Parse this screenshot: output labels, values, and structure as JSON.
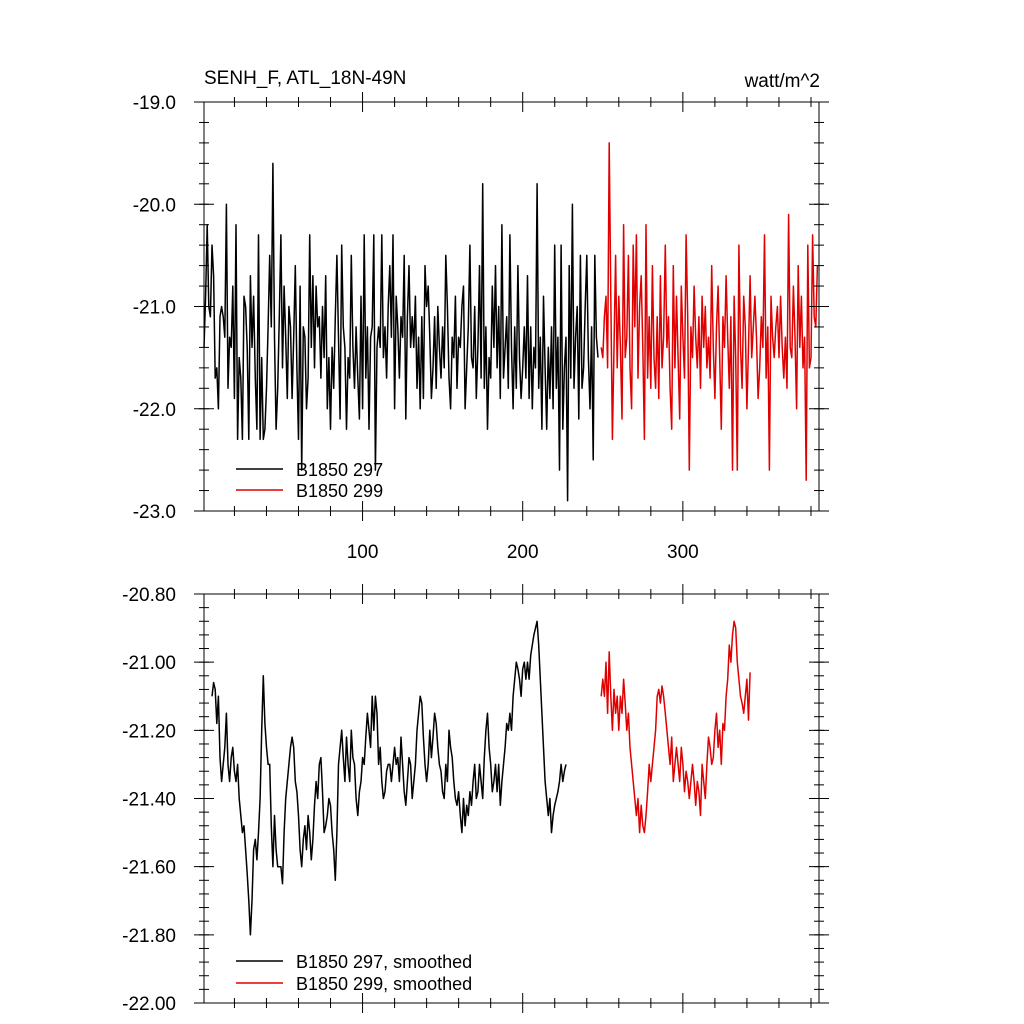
{
  "header": {
    "title": "SENH_F, ATL_18N-49N",
    "units": "watt/m^2"
  },
  "colors": {
    "series_297": "#000000",
    "series_299": "#e00000",
    "axis": "#000000"
  },
  "chart_data": [
    {
      "type": "line",
      "title": "SENH_F, ATL_18N-49N",
      "units": "watt/m^2",
      "xlim": [
        1,
        385
      ],
      "ylim": [
        -23.0,
        -19.0
      ],
      "xticks": [
        100,
        200,
        300
      ],
      "xtick_labels": [
        "100",
        "200",
        "300"
      ],
      "yticks": [
        -23.0,
        -22.0,
        -21.0,
        -20.0,
        -19.0
      ],
      "ytick_labels": [
        "-23.0",
        "-22.0",
        "-21.0",
        "-20.0",
        "-19.0"
      ],
      "legend_position": "bottom-left",
      "series": [
        {
          "name": "B1850 297",
          "color": "#000000",
          "x_start": 1,
          "values": [
            -21.4,
            -20.9,
            -20.2,
            -21.0,
            -21.1,
            -20.4,
            -20.7,
            -21.7,
            -21.6,
            -22.0,
            -21.1,
            -21.0,
            -21.1,
            -21.3,
            -20.0,
            -21.8,
            -21.3,
            -21.4,
            -20.8,
            -21.9,
            -20.2,
            -22.3,
            -21.5,
            -21.7,
            -22.3,
            -20.9,
            -21.0,
            -21.4,
            -22.3,
            -20.7,
            -21.4,
            -20.9,
            -21.7,
            -22.2,
            -20.3,
            -22.3,
            -21.5,
            -22.3,
            -22.2,
            -21.8,
            -21.2,
            -20.5,
            -21.2,
            -19.6,
            -21.3,
            -22.2,
            -21.8,
            -21.1,
            -20.3,
            -21.6,
            -20.8,
            -21.3,
            -21.9,
            -21.0,
            -21.2,
            -21.9,
            -21.3,
            -20.6,
            -21.6,
            -22.3,
            -20.8,
            -22.6,
            -21.2,
            -21.3,
            -22.0,
            -21.7,
            -20.3,
            -21.4,
            -20.7,
            -21.6,
            -20.8,
            -21.2,
            -21.1,
            -21.7,
            -21.0,
            -21.5,
            -20.7,
            -22.0,
            -21.5,
            -22.2,
            -21.4,
            -21.8,
            -21.1,
            -20.5,
            -21.3,
            -22.1,
            -20.4,
            -21.2,
            -21.4,
            -22.2,
            -21.5,
            -21.7,
            -20.5,
            -21.4,
            -21.8,
            -21.2,
            -21.7,
            -22.1,
            -20.9,
            -22.0,
            -20.3,
            -21.7,
            -21.2,
            -22.2,
            -21.3,
            -21.2,
            -20.3,
            -22.6,
            -21.4,
            -21.2,
            -21.4,
            -20.3,
            -21.5,
            -21.2,
            -21.7,
            -21.0,
            -20.6,
            -21.3,
            -20.3,
            -22.0,
            -20.9,
            -21.2,
            -21.7,
            -21.1,
            -21.3,
            -20.5,
            -22.1,
            -21.1,
            -20.6,
            -21.4,
            -21.1,
            -21.4,
            -20.9,
            -21.8,
            -21.3,
            -22.0,
            -21.1,
            -21.9,
            -20.6,
            -21.0,
            -20.8,
            -21.3,
            -21.9,
            -21.6,
            -21.1,
            -21.8,
            -21.0,
            -21.4,
            -21.7,
            -21.2,
            -21.6,
            -20.5,
            -21.0,
            -21.7,
            -22.0,
            -21.3,
            -21.5,
            -20.9,
            -21.8,
            -21.3,
            -21.4,
            -21.0,
            -20.8,
            -22.0,
            -21.6,
            -21.2,
            -20.4,
            -21.5,
            -21.6,
            -21.0,
            -21.9,
            -21.4,
            -20.6,
            -21.7,
            -19.8,
            -21.8,
            -21.2,
            -22.2,
            -21.5,
            -21.7,
            -20.8,
            -21.4,
            -20.6,
            -21.6,
            -21.0,
            -21.9,
            -20.2,
            -21.7,
            -21.4,
            -21.1,
            -21.8,
            -20.3,
            -21.4,
            -22.0,
            -21.2,
            -21.8,
            -20.6,
            -21.5,
            -21.9,
            -21.6,
            -21.2,
            -21.7,
            -20.7,
            -21.9,
            -21.2,
            -22.0,
            -21.4,
            -21.6,
            -19.8,
            -21.8,
            -21.3,
            -22.2,
            -20.9,
            -21.6,
            -22.2,
            -21.4,
            -21.9,
            -21.2,
            -22.0,
            -20.4,
            -21.8,
            -21.3,
            -22.6,
            -20.4,
            -22.2,
            -21.6,
            -21.3,
            -22.9,
            -20.6,
            -21.7,
            -20.0,
            -21.8,
            -21.3,
            -21.0,
            -22.1,
            -20.5,
            -21.8,
            -21.6,
            -21.0,
            -20.5,
            -21.5,
            -22.0,
            -21.2,
            -22.5,
            -20.5,
            -21.3,
            -21.5
          ]
        },
        {
          "name": "B1850 299",
          "color": "#e00000",
          "x_start": 249,
          "values": [
            -21.4,
            -21.5,
            -21.1,
            -20.9,
            -21.6,
            -19.4,
            -20.9,
            -22.3,
            -21.4,
            -20.5,
            -21.6,
            -20.9,
            -21.4,
            -22.1,
            -20.2,
            -21.5,
            -21.3,
            -20.5,
            -21.6,
            -22.0,
            -20.4,
            -21.2,
            -20.3,
            -21.7,
            -21.0,
            -20.7,
            -21.4,
            -22.3,
            -20.2,
            -21.7,
            -21.1,
            -21.8,
            -20.6,
            -21.5,
            -21.8,
            -21.1,
            -21.9,
            -20.7,
            -21.6,
            -21.3,
            -20.4,
            -21.4,
            -21.1,
            -21.8,
            -22.2,
            -20.6,
            -21.6,
            -20.9,
            -21.5,
            -22.1,
            -20.8,
            -21.3,
            -21.7,
            -20.3,
            -21.1,
            -22.6,
            -21.2,
            -21.5,
            -20.8,
            -21.3,
            -21.6,
            -21.1,
            -21.8,
            -20.9,
            -21.4,
            -21.0,
            -21.6,
            -21.3,
            -21.7,
            -20.6,
            -21.4,
            -21.9,
            -21.2,
            -20.8,
            -21.5,
            -22.2,
            -21.1,
            -21.4,
            -20.7,
            -21.3,
            -21.8,
            -21.1,
            -22.6,
            -20.9,
            -21.5,
            -22.6,
            -20.4,
            -21.4,
            -21.8,
            -20.9,
            -21.2,
            -22.0,
            -21.4,
            -20.7,
            -21.5,
            -21.2,
            -20.9,
            -21.3,
            -21.9,
            -21.6,
            -21.1,
            -21.4,
            -20.3,
            -21.7,
            -21.2,
            -22.6,
            -20.9,
            -21.3,
            -21.5,
            -21.2,
            -21.0,
            -21.5,
            -20.9,
            -21.4,
            -21.7,
            -21.3,
            -21.8,
            -20.1,
            -21.4,
            -21.5,
            -20.8,
            -21.3,
            -22.0,
            -20.6,
            -21.4,
            -20.9,
            -21.6,
            -21.3,
            -22.7,
            -20.4,
            -21.6,
            -21.5,
            -20.3,
            -21.1,
            -21.2,
            -20.6
          ]
        }
      ],
      "legend": [
        "B1850 297",
        "B1850 299"
      ]
    },
    {
      "type": "line",
      "xlim": [
        1,
        385
      ],
      "ylim": [
        -22.0,
        -20.8
      ],
      "xticks": [
        100,
        200,
        300
      ],
      "xtick_labels": [],
      "yticks": [
        -22.0,
        -21.8,
        -21.6,
        -21.4,
        -21.2,
        -21.0,
        -20.8
      ],
      "ytick_labels": [
        "-22.00",
        "-21.80",
        "-21.60",
        "-21.40",
        "-21.20",
        "-21.00",
        "-20.80"
      ],
      "legend_position": "bottom-left",
      "series": [
        {
          "name": "B1850 297, smoothed",
          "color": "#000000",
          "x_start": 6,
          "values": [
            -21.1,
            -21.06,
            -21.08,
            -21.18,
            -21.1,
            -21.28,
            -21.35,
            -21.3,
            -21.25,
            -21.15,
            -21.3,
            -21.35,
            -21.28,
            -21.25,
            -21.32,
            -21.35,
            -21.3,
            -21.4,
            -21.45,
            -21.5,
            -21.48,
            -21.55,
            -21.62,
            -21.7,
            -21.8,
            -21.7,
            -21.55,
            -21.52,
            -21.58,
            -21.5,
            -21.4,
            -21.2,
            -21.04,
            -21.18,
            -21.25,
            -21.3,
            -21.3,
            -21.48,
            -21.6,
            -21.45,
            -21.55,
            -21.6,
            -21.6,
            -21.6,
            -21.65,
            -21.5,
            -21.4,
            -21.35,
            -21.3,
            -21.25,
            -21.22,
            -21.25,
            -21.35,
            -21.38,
            -21.45,
            -21.55,
            -21.6,
            -21.52,
            -21.48,
            -21.55,
            -21.45,
            -21.5,
            -21.58,
            -21.52,
            -21.42,
            -21.35,
            -21.4,
            -21.3,
            -21.28,
            -21.38,
            -21.5,
            -21.48,
            -21.45,
            -21.4,
            -21.42,
            -21.5,
            -21.55,
            -21.64,
            -21.5,
            -21.3,
            -21.25,
            -21.2,
            -21.28,
            -21.35,
            -21.22,
            -21.3,
            -21.35,
            -21.2,
            -21.28,
            -21.3,
            -21.4,
            -21.45,
            -21.38,
            -21.35,
            -21.28,
            -21.3,
            -21.22,
            -21.15,
            -21.2,
            -21.25,
            -21.1,
            -21.2,
            -21.1,
            -21.15,
            -21.3,
            -21.25,
            -21.35,
            -21.4,
            -21.38,
            -21.32,
            -21.3,
            -21.3,
            -21.35,
            -21.3,
            -21.25,
            -21.3,
            -21.28,
            -21.35,
            -21.22,
            -21.3,
            -21.38,
            -21.42,
            -21.35,
            -21.28,
            -21.3,
            -21.4,
            -21.35,
            -21.3,
            -21.2,
            -21.15,
            -21.1,
            -21.12,
            -21.22,
            -21.3,
            -21.35,
            -21.3,
            -21.2,
            -21.28,
            -21.22,
            -21.15,
            -21.18,
            -21.25,
            -21.3,
            -21.32,
            -21.38,
            -21.4,
            -21.3,
            -21.35,
            -21.2,
            -21.25,
            -21.28,
            -21.35,
            -21.4,
            -21.42,
            -21.38,
            -21.45,
            -21.5,
            -21.4,
            -21.48,
            -21.42,
            -21.45,
            -21.38,
            -21.42,
            -21.35,
            -21.3,
            -21.4,
            -21.38,
            -21.3,
            -21.35,
            -21.4,
            -21.28,
            -21.2,
            -21.15,
            -21.25,
            -21.3,
            -21.38,
            -21.35,
            -21.3,
            -21.38,
            -21.3,
            -21.42,
            -21.35,
            -21.3,
            -21.25,
            -21.18,
            -21.2,
            -21.15,
            -21.2,
            -21.1,
            -21.05,
            -21.0,
            -21.02,
            -21.05,
            -21.1,
            -21.02,
            -21.0,
            -21.05,
            -21.0,
            -21.05,
            -20.98,
            -20.95,
            -20.92,
            -20.9,
            -20.88,
            -20.95,
            -21.05,
            -21.15,
            -21.25,
            -21.35,
            -21.4,
            -21.45,
            -21.4,
            -21.5,
            -21.45,
            -21.42,
            -21.4,
            -21.38,
            -21.35,
            -21.3,
            -21.35,
            -21.32,
            -21.3
          ]
        },
        {
          "name": "B1850 299, smoothed",
          "color": "#e00000",
          "x_start": 249,
          "values": [
            -21.1,
            -21.05,
            -21.1,
            -21.0,
            -21.15,
            -20.97,
            -21.1,
            -21.2,
            -21.08,
            -21.15,
            -21.1,
            -21.2,
            -21.1,
            -21.15,
            -21.05,
            -21.12,
            -21.2,
            -21.15,
            -21.25,
            -21.3,
            -21.35,
            -21.4,
            -21.45,
            -21.4,
            -21.5,
            -21.42,
            -21.48,
            -21.5,
            -21.45,
            -21.38,
            -21.3,
            -21.35,
            -21.3,
            -21.25,
            -21.2,
            -21.1,
            -21.08,
            -21.12,
            -21.07,
            -21.1,
            -21.15,
            -21.2,
            -21.25,
            -21.3,
            -21.22,
            -21.35,
            -21.3,
            -21.25,
            -21.3,
            -21.35,
            -21.25,
            -21.3,
            -21.38,
            -21.32,
            -21.35,
            -21.4,
            -21.35,
            -21.3,
            -21.35,
            -21.42,
            -21.35,
            -21.38,
            -21.45,
            -21.3,
            -21.35,
            -21.4,
            -21.3,
            -21.22,
            -21.25,
            -21.3,
            -21.28,
            -21.2,
            -21.15,
            -21.25,
            -21.2,
            -21.3,
            -21.18,
            -21.2,
            -21.1,
            -21.05,
            -20.95,
            -21.0,
            -20.92,
            -20.88,
            -20.9,
            -21.0,
            -21.05,
            -21.1,
            -21.12,
            -21.15,
            -21.1,
            -21.05,
            -21.17,
            -21.03
          ]
        }
      ],
      "legend": [
        "B1850 297, smoothed",
        "B1850 299, smoothed"
      ]
    }
  ]
}
